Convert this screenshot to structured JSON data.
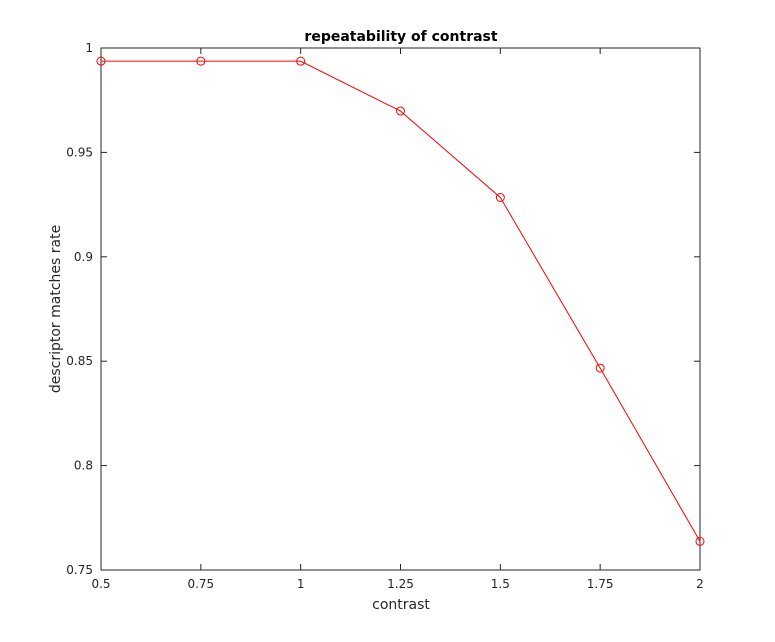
{
  "chart_data": {
    "type": "line",
    "title": "repeatability of contrast",
    "xlabel": "contrast",
    "ylabel": "descriptor matches rate",
    "xlim": [
      0.5,
      2
    ],
    "ylim": [
      0.75,
      1
    ],
    "x_ticks": [
      "0.5",
      "0.75",
      "1",
      "1.25",
      "1.5",
      "1.75",
      "2"
    ],
    "y_ticks": [
      "0.75",
      "0.8",
      "0.85",
      "0.9",
      "0.95",
      "1"
    ],
    "grid": false,
    "legend": "none",
    "series": [
      {
        "color": "#ff0000",
        "marker": "circle",
        "x": [
          0.5,
          0.75,
          1,
          1.25,
          1.5,
          1.75,
          2
        ],
        "y": [
          0.9937,
          0.9937,
          0.9937,
          0.9698,
          0.9284,
          0.8467,
          0.7637
        ]
      }
    ]
  }
}
